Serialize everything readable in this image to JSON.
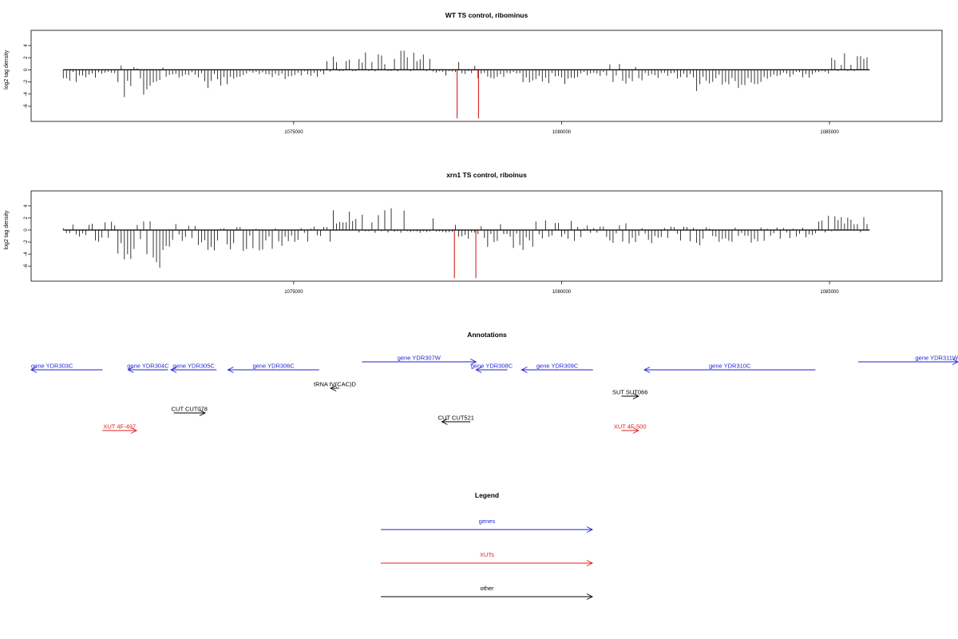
{
  "chart_data": {
    "tracks": [
      {
        "id": "wt",
        "type": "bar",
        "title": "WT TS control, ribominus",
        "ylabel": "log2 tag density",
        "xlim": [
          1070100,
          1087100
        ],
        "ylim": [
          -8.5,
          6.5
        ],
        "yticks": [
          -6,
          -4,
          -2,
          0,
          2,
          4
        ],
        "xticks": [
          1075000,
          1080000,
          1085000
        ],
        "xtick_labels": [
          "1075000",
          "1080000",
          "1085000"
        ],
        "data_start": 1070700,
        "data_end": 1085750,
        "highlight_color": "#d62020",
        "highlights": [
          [
            1078050,
            -8.0
          ],
          [
            1078450,
            -8.0
          ]
        ],
        "profile": [
          [
            1070700,
            1071200,
            -1.5,
            0
          ],
          [
            1071200,
            1071700,
            -1.2,
            0.6
          ],
          [
            1071700,
            1072600,
            -4.5,
            0.8
          ],
          [
            1072600,
            1073300,
            -1.4,
            0
          ],
          [
            1073300,
            1073800,
            -2.8,
            0
          ],
          [
            1073800,
            1075600,
            -1.2,
            0
          ],
          [
            1075600,
            1076300,
            -0.3,
            2.2
          ],
          [
            1076300,
            1077600,
            -0.3,
            3.2
          ],
          [
            1077600,
            1078400,
            -0.8,
            1.5
          ],
          [
            1078400,
            1079200,
            -1.5,
            0
          ],
          [
            1079200,
            1080300,
            -2.5,
            0
          ],
          [
            1080300,
            1080900,
            -1.0,
            0
          ],
          [
            1080900,
            1081400,
            -2.6,
            1.2
          ],
          [
            1081400,
            1082500,
            -1.8,
            0
          ],
          [
            1082500,
            1083800,
            -2.6,
            0
          ],
          [
            1083800,
            1084800,
            -1.5,
            0
          ],
          [
            1084800,
            1085000,
            -0.5,
            0
          ],
          [
            1085000,
            1085750,
            -0.2,
            2.8
          ]
        ]
      },
      {
        "id": "xrn1",
        "type": "bar",
        "title": "xrn1 TS control, riboinus",
        "ylabel": "log2 tag density",
        "xlim": [
          1070100,
          1087100
        ],
        "ylim": [
          -8.5,
          6.5
        ],
        "yticks": [
          -6,
          -4,
          -2,
          0,
          2,
          4
        ],
        "xticks": [
          1075000,
          1080000,
          1085000
        ],
        "xtick_labels": [
          "1075000",
          "1080000",
          "1085000"
        ],
        "data_start": 1070700,
        "data_end": 1085750,
        "highlight_color": "#d62020",
        "highlights": [
          [
            1078000,
            -8.0
          ],
          [
            1078400,
            -8.0
          ]
        ],
        "profile": [
          [
            1070700,
            1071200,
            -2.2,
            1.2
          ],
          [
            1071200,
            1071700,
            -2.0,
            1.4
          ],
          [
            1071700,
            1072600,
            -5.5,
            1.5
          ],
          [
            1072600,
            1073300,
            -3.5,
            1.0
          ],
          [
            1073300,
            1074900,
            -3.8,
            0.5
          ],
          [
            1074900,
            1075700,
            -2.0,
            0.6
          ],
          [
            1075700,
            1076500,
            -0.4,
            3.5
          ],
          [
            1076500,
            1077900,
            -0.5,
            4.2
          ],
          [
            1077900,
            1078500,
            -1.2,
            2.0
          ],
          [
            1078500,
            1079400,
            -3.0,
            1.2
          ],
          [
            1079400,
            1080300,
            -2.8,
            2.0
          ],
          [
            1080300,
            1080900,
            -1.2,
            0.8
          ],
          [
            1080900,
            1081400,
            -2.5,
            2.0
          ],
          [
            1081400,
            1082800,
            -2.2,
            0.6
          ],
          [
            1082800,
            1084100,
            -2.4,
            0.5
          ],
          [
            1084100,
            1084800,
            -1.8,
            0.5
          ],
          [
            1084800,
            1085750,
            -0.4,
            2.8
          ]
        ]
      }
    ],
    "annotations": {
      "title": "Annotations",
      "xlim": [
        1070100,
        1086350
      ],
      "features": [
        {
          "label": "gene YDR303C",
          "start": 1070100,
          "end": 1071350,
          "strand": "-",
          "category": "genes",
          "lane": 0
        },
        {
          "label": "gene YDR304C",
          "start": 1071800,
          "end": 1072500,
          "strand": "-",
          "category": "genes",
          "lane": 0
        },
        {
          "label": "gene YDR305C",
          "start": 1072550,
          "end": 1073350,
          "strand": "-",
          "category": "genes",
          "lane": 0
        },
        {
          "label": "gene YDR306C",
          "start": 1073550,
          "end": 1075150,
          "strand": "-",
          "category": "genes",
          "lane": 0
        },
        {
          "label": "gene YDR307W",
          "start": 1075900,
          "end": 1077900,
          "strand": "+",
          "category": "genes",
          "lane": -1
        },
        {
          "label": "gene YDR308C",
          "start": 1077900,
          "end": 1078450,
          "strand": "-",
          "category": "genes",
          "lane": 0
        },
        {
          "label": "gene YDR309C",
          "start": 1078700,
          "end": 1079950,
          "strand": "-",
          "category": "genes",
          "lane": 0
        },
        {
          "label": "gene YDR310C",
          "start": 1080850,
          "end": 1083850,
          "strand": "-",
          "category": "genes",
          "lane": 0
        },
        {
          "label": "gene YDR311W",
          "start": 1084600,
          "end": 1086350,
          "strand": "+",
          "category": "genes",
          "lane": -1
        },
        {
          "label": "tRNA tV(CAC)D",
          "start": 1075350,
          "end": 1075500,
          "strand": "-",
          "category": "other",
          "lane": 1
        },
        {
          "label": "SUT SUT066",
          "start": 1080450,
          "end": 1080750,
          "strand": "+",
          "category": "other",
          "lane": 2
        },
        {
          "label": "CUT CUT078",
          "start": 1072600,
          "end": 1073150,
          "strand": "+",
          "category": "other",
          "lane": 3
        },
        {
          "label": "CUT CUT521",
          "start": 1077300,
          "end": 1077800,
          "strand": "-",
          "category": "other",
          "lane": 4
        },
        {
          "label": "XUT 4F-497",
          "start": 1071350,
          "end": 1071950,
          "strand": "+",
          "category": "XUTs",
          "lane": 5
        },
        {
          "label": "XUT 4F-500",
          "start": 1080450,
          "end": 1080750,
          "strand": "+",
          "category": "XUTs",
          "lane": 5
        }
      ]
    },
    "legend": {
      "title": "Legend",
      "entries": [
        {
          "label": "genes",
          "color": "#1f1fd6"
        },
        {
          "label": "XUTs",
          "color": "#e01f1f"
        },
        {
          "label": "other",
          "color": "#000000"
        }
      ]
    }
  }
}
